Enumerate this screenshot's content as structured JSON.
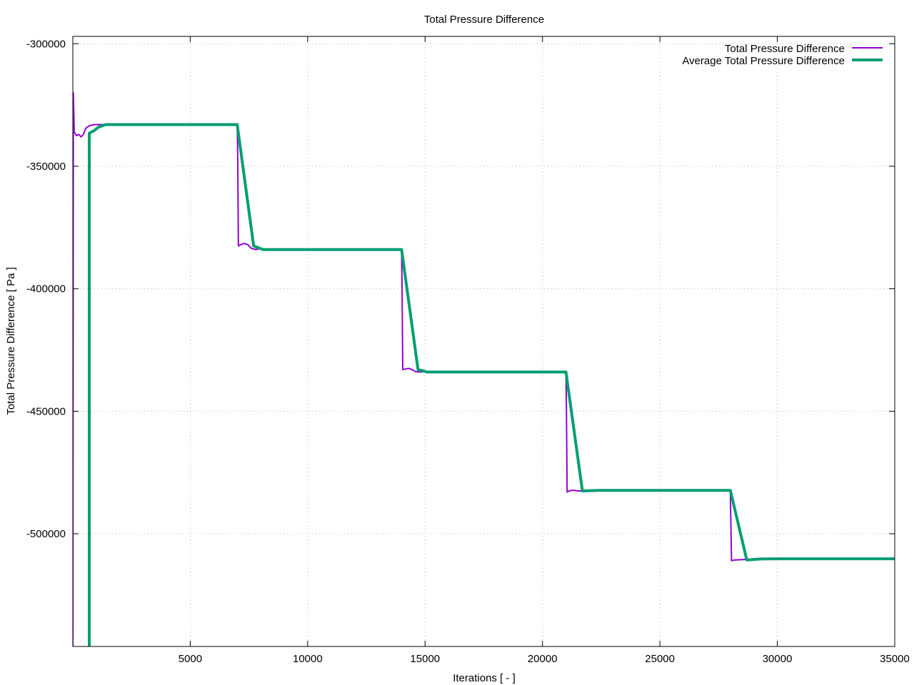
{
  "chart_data": {
    "type": "line",
    "title": "Total Pressure Difference",
    "xlabel": "Iterations [ - ]",
    "ylabel": "Total Pressure Difference [ Pa ]",
    "xlim": [
      0,
      35000
    ],
    "ylim": [
      -546000,
      -297000
    ],
    "xticks": [
      5000,
      10000,
      15000,
      20000,
      25000,
      30000,
      35000
    ],
    "yticks": [
      -300000,
      -350000,
      -400000,
      -450000,
      -500000
    ],
    "xtick_labels": [
      "5000",
      "10000",
      "15000",
      "20000",
      "25000",
      "30000",
      "35000"
    ],
    "ytick_labels": [
      "-300000",
      "-350000",
      "-400000",
      "-450000",
      "-500000"
    ],
    "grid": true,
    "legend_position": "top-right",
    "series": [
      {
        "name": "Total Pressure Difference",
        "color": "#9400d3",
        "line_width": 2,
        "points": [
          [
            0,
            -546000
          ],
          [
            20,
            -320000
          ],
          [
            60,
            -336000
          ],
          [
            150,
            -337500
          ],
          [
            250,
            -337000
          ],
          [
            350,
            -338000
          ],
          [
            450,
            -337000
          ],
          [
            550,
            -334500
          ],
          [
            700,
            -333500
          ],
          [
            900,
            -333000
          ],
          [
            1200,
            -333000
          ],
          [
            1600,
            -333000
          ],
          [
            3000,
            -333000
          ],
          [
            7000,
            -333000
          ],
          [
            7020,
            -345000
          ],
          [
            7050,
            -382500
          ],
          [
            7150,
            -382000
          ],
          [
            7300,
            -381500
          ],
          [
            7450,
            -382000
          ],
          [
            7600,
            -383500
          ],
          [
            7800,
            -384000
          ],
          [
            8000,
            -383500
          ],
          [
            8300,
            -384000
          ],
          [
            14000,
            -384000
          ],
          [
            14020,
            -400000
          ],
          [
            14050,
            -433000
          ],
          [
            14150,
            -432800
          ],
          [
            14300,
            -432500
          ],
          [
            14450,
            -433000
          ],
          [
            14600,
            -433800
          ],
          [
            14800,
            -434000
          ],
          [
            15000,
            -433800
          ],
          [
            15300,
            -434000
          ],
          [
            21000,
            -434000
          ],
          [
            21020,
            -450000
          ],
          [
            21050,
            -483000
          ],
          [
            21150,
            -482500
          ],
          [
            21300,
            -482200
          ],
          [
            21500,
            -482500
          ],
          [
            21700,
            -482500
          ],
          [
            22000,
            -482300
          ],
          [
            22500,
            -482300
          ],
          [
            28000,
            -482300
          ],
          [
            28020,
            -495000
          ],
          [
            28050,
            -511000
          ],
          [
            28200,
            -510700
          ],
          [
            28600,
            -510500
          ],
          [
            29000,
            -510300
          ],
          [
            29500,
            -510200
          ],
          [
            35000,
            -510200
          ]
        ]
      },
      {
        "name": "Average Total Pressure Difference",
        "color": "#009e73",
        "line_width": 4,
        "points": [
          [
            700,
            -546000
          ],
          [
            700,
            -336500
          ],
          [
            900,
            -335500
          ],
          [
            1100,
            -334000
          ],
          [
            1400,
            -333000
          ],
          [
            2000,
            -333000
          ],
          [
            7000,
            -333000
          ],
          [
            7700,
            -382500
          ],
          [
            8100,
            -384000
          ],
          [
            14000,
            -384000
          ],
          [
            14700,
            -433000
          ],
          [
            15100,
            -434000
          ],
          [
            21000,
            -434000
          ],
          [
            21700,
            -482500
          ],
          [
            22400,
            -482300
          ],
          [
            28000,
            -482300
          ],
          [
            28700,
            -510700
          ],
          [
            29300,
            -510300
          ],
          [
            30000,
            -510200
          ],
          [
            35000,
            -510200
          ]
        ]
      }
    ]
  }
}
